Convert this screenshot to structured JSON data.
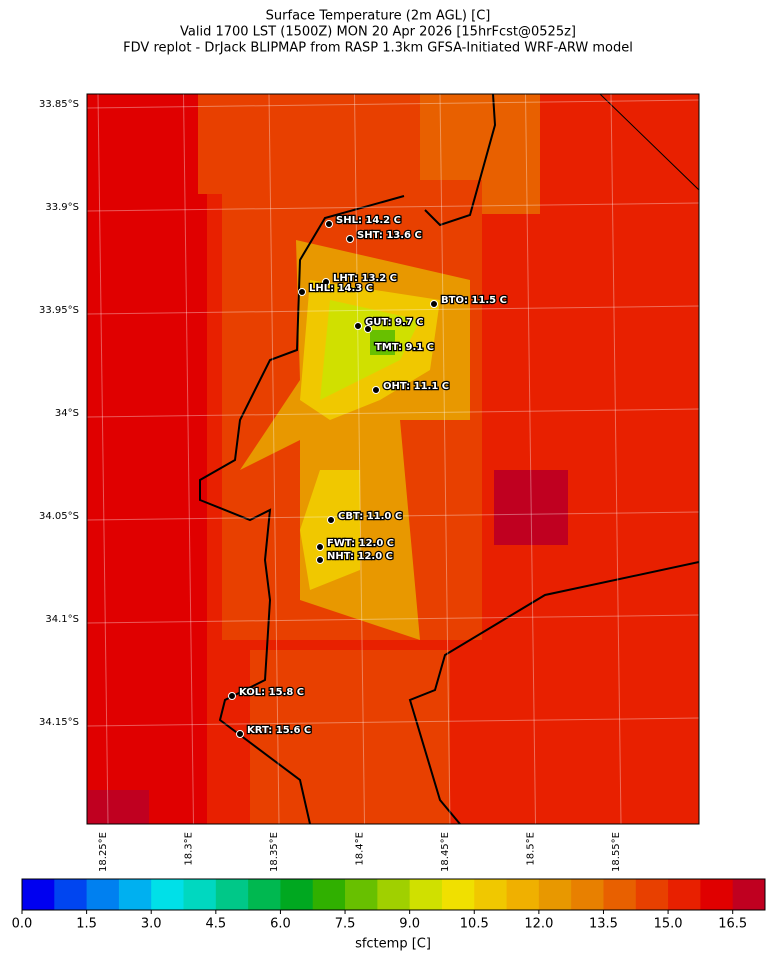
{
  "header": {
    "title_lines": [
      "Surface Temperature (2m AGL) [C]",
      "Valid 1700 LST (1500Z) MON 20 Apr 2026 [15hrFcst@0525z]",
      "FDV replot - DrJack BLIPMAP from RASP 1.3km GFSA-Initiated WRF-ARW model"
    ]
  },
  "map": {
    "lat_labels": [
      "33.85°S",
      "33.9°S",
      "33.95°S",
      "34°S",
      "34.05°S",
      "34.1°S",
      "34.15°S"
    ],
    "lon_labels": [
      "18.25°E",
      "18.3°E",
      "18.35°E",
      "18.4°E",
      "18.45°E",
      "18.5°E",
      "18.55°E"
    ],
    "stations": [
      {
        "label": "SHL: 14.2 C"
      },
      {
        "label": "SHT: 13.6 C"
      },
      {
        "label": "LHT: 13.2 C"
      },
      {
        "label": "LHL: 14.3 C"
      },
      {
        "label": "BTO: 11.5 C"
      },
      {
        "label": "GUT: 9.7 C"
      },
      {
        "label": "TMT: 9.1 C"
      },
      {
        "label": "OHT: 11.1 C"
      },
      {
        "label": "CBT: 11.0 C"
      },
      {
        "label": "FWT: 12.0 C"
      },
      {
        "label": "NHT: 12.0 C"
      },
      {
        "label": "KOL: 15.8 C"
      },
      {
        "label": "KRT: 15.6 C"
      }
    ]
  },
  "colorbar": {
    "label": "sfctemp [C]",
    "lim": [
      0,
      17.25
    ],
    "ticks": [
      {
        "value": 0,
        "label": "0.0"
      },
      1.5,
      {
        "value": 3,
        "label": "3.0"
      },
      4.5,
      {
        "value": 6,
        "label": "6.0"
      },
      7.5,
      {
        "value": 9,
        "label": "9.0"
      },
      10.5,
      {
        "value": 12,
        "label": "12.0"
      },
      13.5,
      {
        "value": 15,
        "label": "15.0"
      },
      16.5
    ],
    "colors": [
      "#0000f0",
      "#0045f0",
      "#0080f0",
      "#00b0f0",
      "#00e0e8",
      "#00d8c0",
      "#00c888",
      "#00b850",
      "#00a820",
      "#30b000",
      "#68c000",
      "#a0d000",
      "#d0e000",
      "#f0e000",
      "#f0c800",
      "#f0b000",
      "#e89800",
      "#e88000",
      "#e86000",
      "#e84000",
      "#e82000",
      "#e00000",
      "#c00020"
    ]
  }
}
